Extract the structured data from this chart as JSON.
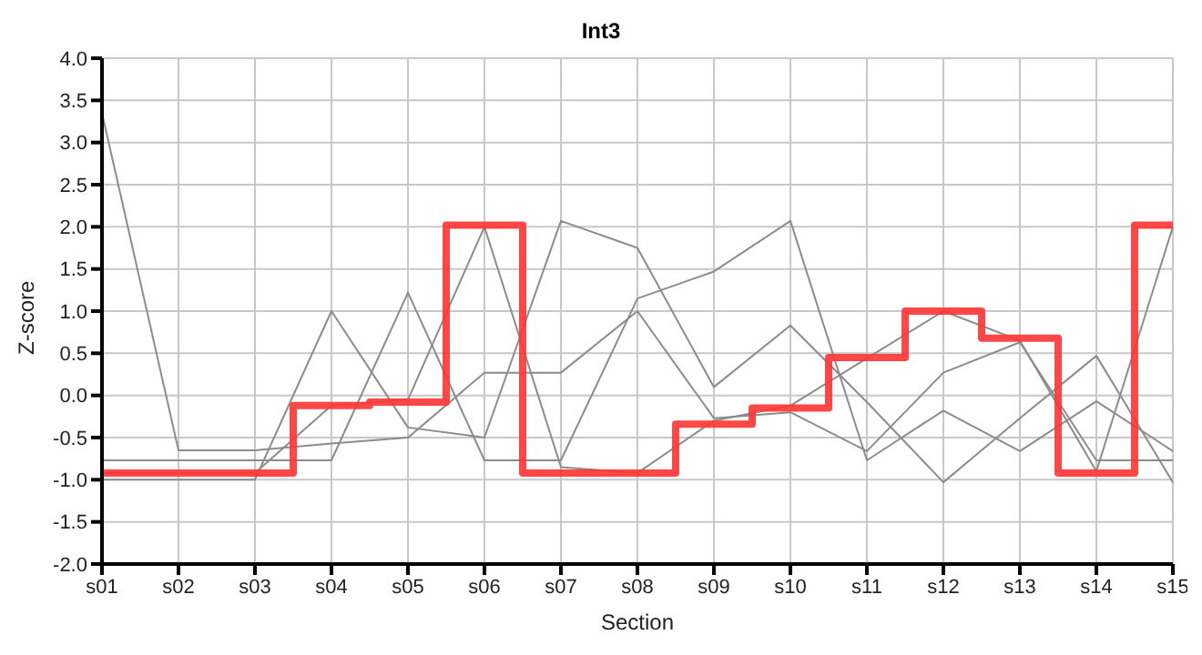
{
  "chart_data": {
    "type": "line",
    "title": "Int3",
    "xlabel": "Section",
    "ylabel": "Z-score",
    "categories": [
      "s01",
      "s02",
      "s03",
      "s04",
      "s05",
      "s06",
      "s07",
      "s08",
      "s09",
      "s10",
      "s11",
      "s12",
      "s13",
      "s14",
      "s15"
    ],
    "series": [
      {
        "color": "#8c8c8c",
        "values": [
          3.35,
          -0.65,
          -0.65,
          -0.57,
          -0.5,
          0.27,
          0.27,
          1.0,
          -0.27,
          -0.2,
          -0.66,
          0.27,
          0.63,
          -0.77,
          -0.77
        ]
      },
      {
        "color": "#8c8c8c",
        "values": [
          -0.77,
          -0.77,
          -0.77,
          -0.77,
          1.22,
          -0.77,
          -0.77,
          1.15,
          1.47,
          2.07,
          -0.77,
          -0.18,
          -0.66,
          -0.07,
          -0.66
        ]
      },
      {
        "color": "#8c8c8c",
        "values": [
          -1.0,
          -1.0,
          -1.0,
          1.0,
          -0.38,
          -0.5,
          2.07,
          1.75,
          0.1,
          0.83,
          -0.08,
          -1.03,
          -0.27,
          0.47,
          -1.03
        ]
      },
      {
        "color": "#8c8c8c",
        "values": [
          -0.92,
          -0.92,
          -0.92,
          -0.12,
          -0.05,
          2.0,
          -0.85,
          -0.92,
          -0.3,
          -0.12,
          0.44,
          1.0,
          0.65,
          -0.9,
          2.0
        ]
      },
      {
        "type": "step",
        "color": "#ff3333",
        "values": [
          -0.92,
          -0.92,
          -0.92,
          -0.12,
          -0.08,
          2.02,
          -0.92,
          -0.92,
          -0.34,
          -0.15,
          0.45,
          1.0,
          0.68,
          -0.92,
          2.02
        ]
      }
    ],
    "ylim": [
      -2.0,
      4.0
    ],
    "yticks": [
      {
        "value": -2,
        "label": "-2.0"
      },
      {
        "value": -1.5,
        "label": "-1.5"
      },
      {
        "value": -1,
        "label": "-1.0"
      },
      {
        "value": -0.5,
        "label": "-0.5"
      },
      {
        "value": 0,
        "label": "0.0"
      },
      {
        "value": 0.5,
        "label": "0.5"
      },
      {
        "value": 1,
        "label": "1.0"
      },
      {
        "value": 1.5,
        "label": "1.5"
      },
      {
        "value": 2,
        "label": "2.0"
      },
      {
        "value": 2.5,
        "label": "2.5"
      },
      {
        "value": 3,
        "label": "3.0"
      },
      {
        "value": 3.5,
        "label": "3.5"
      },
      {
        "value": 4,
        "label": "4.0"
      }
    ],
    "grid": true,
    "legend": false,
    "marker": "none",
    "line_style": "solid"
  }
}
